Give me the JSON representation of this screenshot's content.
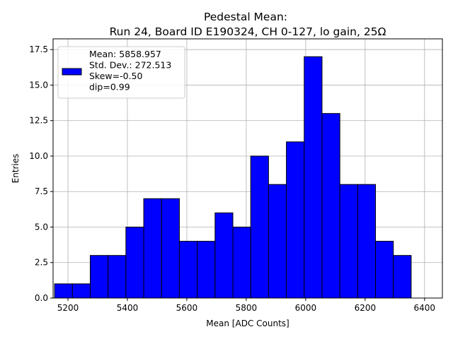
{
  "chart_data": {
    "type": "histogram",
    "title_lines": [
      "Pedestal Mean:",
      "Run 24, Board ID E190324, CH 0-127, lo gain, 25Ω"
    ],
    "xlabel": "Mean [ADC Counts]",
    "ylabel": "Entries",
    "xlim": [
      5150,
      6460
    ],
    "ylim": [
      0,
      19.5
    ],
    "xticks": [
      5200,
      5400,
      5600,
      5800,
      6000,
      6200,
      6400
    ],
    "yticks": [
      0.0,
      2.5,
      5.0,
      7.5,
      10.0,
      12.5,
      15.0,
      17.5
    ],
    "grid": true,
    "bar_color": "#0000ff",
    "edge_color": "#000000",
    "bin_edges": [
      5155,
      5215,
      5275,
      5335,
      5395,
      5455,
      5515,
      5575,
      5635,
      5695,
      5755,
      5815,
      5875,
      5935,
      5995,
      6055,
      6115,
      6175,
      6235,
      6295,
      6355,
      6415
    ],
    "counts": [
      1,
      1,
      3,
      3,
      5,
      7,
      7,
      4,
      4,
      6,
      5,
      10,
      8,
      11,
      17,
      13,
      8,
      8,
      4,
      3,
      0
    ],
    "legend": {
      "placement": "upper-left",
      "lines": [
        "Mean: 5858.957",
        "Std. Dev.: 272.513",
        "Skew=-0.50",
        "dip=0.99"
      ]
    }
  }
}
